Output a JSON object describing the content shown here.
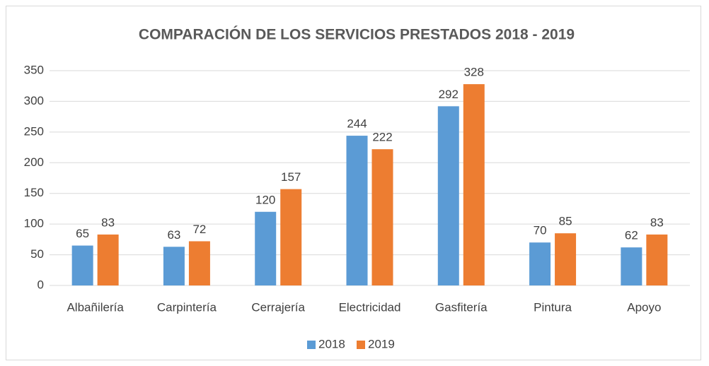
{
  "chart_data": {
    "type": "bar",
    "title": "COMPARACIÓN DE LOS SERVICIOS PRESTADOS 2018 - 2019",
    "categories": [
      "Albañilería",
      "Carpintería",
      "Cerrajería",
      "Electricidad",
      "Gasfitería",
      "Pintura",
      "Apoyo"
    ],
    "series": [
      {
        "name": "2018",
        "color": "#5b9bd5",
        "values": [
          65,
          63,
          120,
          244,
          292,
          70,
          62
        ]
      },
      {
        "name": "2019",
        "color": "#ed7d31",
        "values": [
          83,
          72,
          157,
          222,
          328,
          85,
          83
        ]
      }
    ],
    "ylim": [
      0,
      350
    ],
    "yticks": [
      0,
      50,
      100,
      150,
      200,
      250,
      300,
      350
    ],
    "grid": true,
    "legend": "bottom"
  }
}
